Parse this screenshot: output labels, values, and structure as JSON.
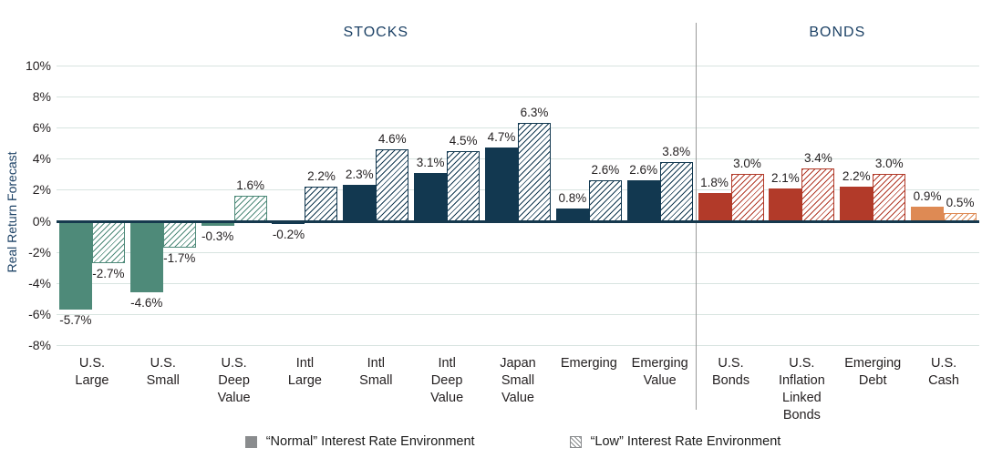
{
  "sections": [
    {
      "label": "STOCKS",
      "category_start": 0,
      "category_end": 8
    },
    {
      "label": "BONDS",
      "category_start": 9,
      "category_end": 12
    }
  ],
  "legend": [
    {
      "label": "“Normal” Interest Rate Environment",
      "style": "solid",
      "swatch_color": "#8a8c8e"
    },
    {
      "label": "“Low” Interest Rate Environment",
      "style": "hatched",
      "swatch_color": "#8a8c8e"
    }
  ],
  "chart_data": {
    "type": "bar",
    "title": "",
    "xlabel": "",
    "ylabel": "Real Return Forecast",
    "ylim": [
      -8,
      10
    ],
    "grid": true,
    "legend_position": "bottom",
    "yticks": [
      "10%",
      "8%",
      "6%",
      "4%",
      "2%",
      "0%",
      "-2%",
      "-4%",
      "-6%",
      "-8%"
    ],
    "categories": [
      "U.S. Large",
      "U.S. Small",
      "U.S. Deep Value",
      "Intl Large",
      "Intl Small",
      "Intl Deep Value",
      "Japan Small Value",
      "Emerging",
      "Emerging Value",
      "U.S. Bonds",
      "U.S. Inflation Linked Bonds",
      "Emerging Debt",
      "U.S. Cash"
    ],
    "category_colors": [
      "#4E8A79",
      "#4E8A79",
      "#4E8A79",
      "#123850",
      "#123850",
      "#123850",
      "#123850",
      "#123850",
      "#123850",
      "#B23A29",
      "#B23A29",
      "#B23A29",
      "#DE8A54"
    ],
    "series": [
      {
        "name": "“Normal” Interest Rate Environment",
        "style": "solid",
        "values": [
          -5.7,
          -4.6,
          -0.3,
          -0.2,
          2.3,
          3.1,
          4.7,
          0.8,
          2.6,
          1.8,
          2.1,
          2.2,
          0.9
        ]
      },
      {
        "name": "“Low” Interest Rate Environment",
        "style": "hatched",
        "values": [
          -2.7,
          -1.7,
          1.6,
          2.2,
          4.6,
          4.5,
          6.3,
          2.6,
          3.8,
          3.0,
          3.4,
          3.0,
          0.5
        ]
      }
    ],
    "colors": {
      "gridline": "#d8e4e0",
      "zero_line": "#16394e",
      "divider": "#999999",
      "section_header_text": "#1d4266",
      "axis_title_text": "#1d4266",
      "label_text": "#231f20"
    }
  }
}
